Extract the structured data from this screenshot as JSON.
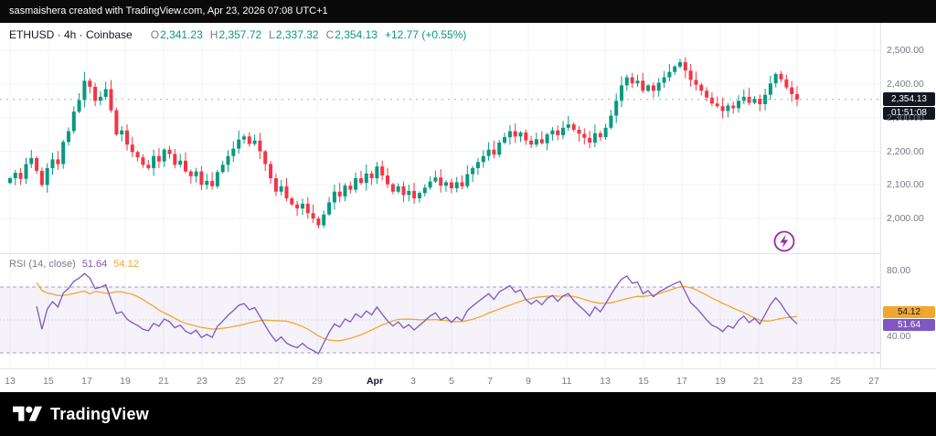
{
  "top_bar": {
    "text": "sasmaishera created with TradingView.com, Apr 23, 2026 07:08 UTC+1"
  },
  "header": {
    "title": "ETHUSD · 4h · Coinbase",
    "ohlc": [
      {
        "k": "O",
        "v": "2,341.23"
      },
      {
        "k": "H",
        "v": "2,357.72"
      },
      {
        "k": "L",
        "v": "2,337.32"
      },
      {
        "k": "C",
        "v": "2,354.13"
      }
    ],
    "change": "+12.77 (+0.55%)"
  },
  "price_axis": {
    "ticks": [
      {
        "label": "2,500.00",
        "value": 2500
      },
      {
        "label": "2,400.00",
        "value": 2400
      },
      {
        "label": "2,300.00",
        "value": 2300
      },
      {
        "label": "2,200.00",
        "value": 2200
      },
      {
        "label": "2,100.00",
        "value": 2100
      },
      {
        "label": "2,000.00",
        "value": 2000
      }
    ]
  },
  "last_price": {
    "value": "2,354.13",
    "countdown": "01:51:08"
  },
  "time_axis": {
    "labels": [
      {
        "label": "13",
        "d": 0
      },
      {
        "label": "15",
        "d": 2
      },
      {
        "label": "17",
        "d": 4
      },
      {
        "label": "19",
        "d": 6
      },
      {
        "label": "21",
        "d": 8
      },
      {
        "label": "23",
        "d": 10
      },
      {
        "label": "25",
        "d": 12
      },
      {
        "label": "27",
        "d": 14
      },
      {
        "label": "29",
        "d": 16
      },
      {
        "label": "Apr",
        "d": 19,
        "em": true
      },
      {
        "label": "3",
        "d": 21
      },
      {
        "label": "5",
        "d": 23
      },
      {
        "label": "7",
        "d": 25
      },
      {
        "label": "9",
        "d": 27
      },
      {
        "label": "11",
        "d": 29
      },
      {
        "label": "13",
        "d": 31
      },
      {
        "label": "15",
        "d": 33
      },
      {
        "label": "17",
        "d": 35
      },
      {
        "label": "19",
        "d": 37
      },
      {
        "label": "21",
        "d": 39
      },
      {
        "label": "23",
        "d": 41
      },
      {
        "label": "25",
        "d": 43
      },
      {
        "label": "27",
        "d": 45
      }
    ]
  },
  "rsi": {
    "label": "RSI (14, close)",
    "value": "51.64",
    "ma_value": "54.12",
    "ticks": [
      {
        "label": "80.00",
        "value": 80
      },
      {
        "label": "40.00",
        "value": 40
      }
    ],
    "upper_band": 70,
    "lower_band": 30
  },
  "footer": {
    "brand": "TradingView"
  },
  "colors": {
    "up": "#089981",
    "down": "#F23645",
    "rsi_line": "#7E57C2",
    "rsi_ma_line": "#F0A732",
    "badge_dark": "#131722",
    "axis_text": "#787b86",
    "grid": "#f0f3fa"
  },
  "chart_data": {
    "type": "candlestick",
    "symbol": "ETHUSD",
    "interval": "4h",
    "exchange": "Coinbase",
    "title": "ETHUSD 4h Coinbase with RSI(14, close)",
    "x_range": {
      "start": "Mar 13",
      "end_of_data": "Apr 23",
      "axis_end": "Apr 27",
      "data_days": 41,
      "axis_days": 45
    },
    "y_axis": {
      "min": 1900,
      "max": 2580,
      "gridline_step": 100
    },
    "last_candle": {
      "open": 2341.23,
      "high": 2357.72,
      "low": 2337.32,
      "close": 2354.13,
      "change": 12.77,
      "change_pct": 0.55
    },
    "closes": [
      2120,
      2136,
      2118,
      2162,
      2180,
      2142,
      2100,
      2150,
      2176,
      2162,
      2228,
      2260,
      2318,
      2352,
      2410,
      2392,
      2350,
      2362,
      2385,
      2322,
      2250,
      2262,
      2220,
      2198,
      2182,
      2160,
      2150,
      2186,
      2170,
      2205,
      2192,
      2160,
      2172,
      2140,
      2126,
      2140,
      2100,
      2112,
      2096,
      2138,
      2160,
      2186,
      2208,
      2235,
      2244,
      2222,
      2232,
      2200,
      2162,
      2120,
      2080,
      2096,
      2060,
      2042,
      2030,
      2044,
      2016,
      2000,
      1980,
      2012,
      2048,
      2080,
      2066,
      2098,
      2086,
      2120,
      2106,
      2134,
      2120,
      2155,
      2128,
      2102,
      2080,
      2096,
      2070,
      2082,
      2060,
      2076,
      2092,
      2110,
      2122,
      2098,
      2108,
      2090,
      2108,
      2096,
      2132,
      2150,
      2168,
      2186,
      2205,
      2190,
      2226,
      2242,
      2260,
      2244,
      2256,
      2232,
      2220,
      2236,
      2224,
      2250,
      2262,
      2248,
      2270,
      2280,
      2264,
      2252,
      2240,
      2226,
      2254,
      2242,
      2270,
      2306,
      2350,
      2396,
      2420,
      2402,
      2410,
      2380,
      2396,
      2380,
      2404,
      2420,
      2436,
      2452,
      2465,
      2440,
      2412,
      2398,
      2380,
      2360,
      2342,
      2334,
      2320,
      2336,
      2328,
      2350,
      2362,
      2344,
      2356,
      2340,
      2368,
      2402,
      2430,
      2414,
      2390,
      2370,
      2354.13
    ],
    "indicator": {
      "name": "RSI",
      "length": 14,
      "source": "close",
      "last_value": 51.64,
      "ma_last_value": 54.12,
      "band_levels": [
        70,
        30
      ],
      "scale_ticks": [
        80,
        40
      ]
    }
  }
}
